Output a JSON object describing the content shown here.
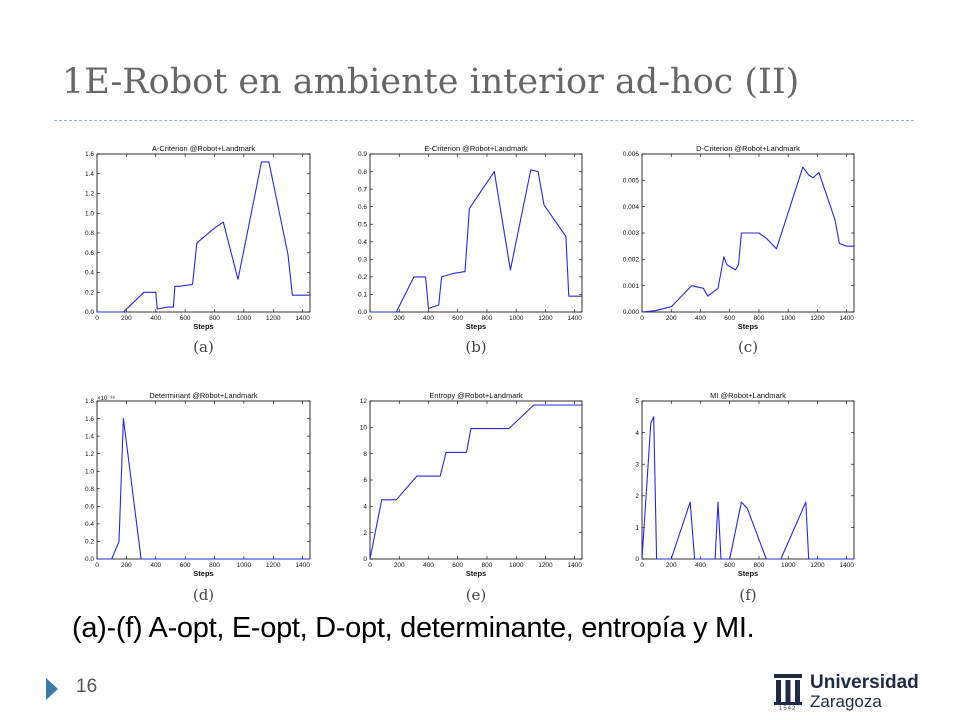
{
  "slide": {
    "title": "1E-Robot en ambiente interior ad-hoc (II)",
    "caption": "(a)-(f) A-opt, E-opt, D-opt, determinante, entropía y MI.",
    "page_number": "16",
    "logo": {
      "line1": "Universidad",
      "line2": "Zaragoza",
      "year": "1542"
    }
  },
  "colors": {
    "line": "#2a2ad6",
    "axes": "#000000",
    "title_rule": "#9fb8c8",
    "bullet": "#3a7ca5"
  },
  "chart_data": [
    {
      "type": "line",
      "panel_label": "(a)",
      "title": "A-Criterion @Robot+Landmark",
      "xlabel": "Steps",
      "ylabel": "",
      "xlim": [
        0,
        1450
      ],
      "ylim": [
        0,
        1.6
      ],
      "xticks": [
        "0",
        "200",
        "400",
        "600",
        "800",
        "1000",
        "1200",
        "1400"
      ],
      "xtick_values": [
        0,
        200,
        400,
        600,
        800,
        1000,
        1200,
        1400
      ],
      "yticks": [
        "0.0",
        "0.2",
        "0.4",
        "0.6",
        "0.8",
        "1.0",
        "1.2",
        "1.4",
        "1.6"
      ],
      "ytick_values": [
        0,
        0.2,
        0.4,
        0.6,
        0.8,
        1.0,
        1.2,
        1.4,
        1.6
      ],
      "y_multiplier": "",
      "series": [
        {
          "x": [
            0,
            180,
            320,
            400,
            410,
            480,
            520,
            530,
            560,
            650,
            680,
            720,
            800,
            860,
            960,
            1120,
            1170,
            1300,
            1330,
            1450
          ],
          "y": [
            0,
            0,
            0.2,
            0.2,
            0.03,
            0.05,
            0.05,
            0.26,
            0.26,
            0.28,
            0.7,
            0.75,
            0.85,
            0.91,
            0.33,
            1.52,
            1.52,
            0.58,
            0.17,
            0.17
          ]
        }
      ]
    },
    {
      "type": "line",
      "panel_label": "(b)",
      "title": "E-Criterion @Robot+Landmark",
      "xlabel": "Steps",
      "ylabel": "",
      "xlim": [
        0,
        1450
      ],
      "ylim": [
        0,
        0.9
      ],
      "xticks": [
        "0",
        "200",
        "400",
        "600",
        "800",
        "1000",
        "1200",
        "1400"
      ],
      "xtick_values": [
        0,
        200,
        400,
        600,
        800,
        1000,
        1200,
        1400
      ],
      "yticks": [
        "0.0",
        "0.1",
        "0.2",
        "0.3",
        "0.4",
        "0.5",
        "0.6",
        "0.7",
        "0.8",
        "0.9"
      ],
      "ytick_values": [
        0,
        0.1,
        0.2,
        0.3,
        0.4,
        0.5,
        0.6,
        0.7,
        0.8,
        0.9
      ],
      "y_multiplier": "",
      "series": [
        {
          "x": [
            0,
            180,
            300,
            380,
            400,
            470,
            490,
            530,
            570,
            650,
            680,
            850,
            960,
            1100,
            1150,
            1190,
            1340,
            1360,
            1450
          ],
          "y": [
            0,
            0,
            0.2,
            0.2,
            0.02,
            0.04,
            0.2,
            0.21,
            0.22,
            0.23,
            0.59,
            0.8,
            0.24,
            0.81,
            0.8,
            0.61,
            0.43,
            0.09,
            0.09
          ]
        }
      ]
    },
    {
      "type": "line",
      "panel_label": "(c)",
      "title": "D-Criterion @Robot+Landmark",
      "xlabel": "Steps",
      "ylabel": "",
      "xlim": [
        0,
        1450
      ],
      "ylim": [
        0,
        0.006
      ],
      "xticks": [
        "0",
        "200",
        "400",
        "600",
        "800",
        "1000",
        "1200",
        "1400"
      ],
      "xtick_values": [
        0,
        200,
        400,
        600,
        800,
        1000,
        1200,
        1400
      ],
      "yticks": [
        "0.000",
        "0.001",
        "0.002",
        "0.003",
        "0.004",
        "0.005",
        "0.006"
      ],
      "ytick_values": [
        0,
        0.001,
        0.002,
        0.003,
        0.004,
        0.005,
        0.006
      ],
      "y_multiplier": "",
      "series": [
        {
          "x": [
            0,
            90,
            200,
            340,
            420,
            450,
            520,
            560,
            580,
            640,
            660,
            680,
            800,
            850,
            920,
            1100,
            1140,
            1170,
            1210,
            1320,
            1350,
            1400,
            1450
          ],
          "y": [
            0,
            5e-05,
            0.0002,
            0.001,
            0.0009,
            0.0006,
            0.0009,
            0.0021,
            0.0018,
            0.0016,
            0.0018,
            0.003,
            0.003,
            0.0028,
            0.0024,
            0.0055,
            0.0052,
            0.0051,
            0.0053,
            0.0035,
            0.0026,
            0.0025,
            0.0025
          ]
        }
      ]
    },
    {
      "type": "line",
      "panel_label": "(d)",
      "title": "Determinant @Robot+Landmark",
      "xlabel": "Steps",
      "ylabel": "",
      "xlim": [
        0,
        1450
      ],
      "ylim": [
        0,
        1.8
      ],
      "xticks": [
        "0",
        "200",
        "400",
        "600",
        "800",
        "1000",
        "1200",
        "1400"
      ],
      "xtick_values": [
        0,
        200,
        400,
        600,
        800,
        1000,
        1200,
        1400
      ],
      "yticks": [
        "0.0",
        "0.2",
        "0.4",
        "0.6",
        "0.8",
        "1.0",
        "1.2",
        "1.4",
        "1.6",
        "1.8"
      ],
      "ytick_values": [
        0,
        0.2,
        0.4,
        0.6,
        0.8,
        1.0,
        1.2,
        1.4,
        1.6,
        1.8
      ],
      "y_multiplier": "×10⁻¹⁸",
      "series": [
        {
          "x": [
            0,
            100,
            150,
            180,
            300,
            1450
          ],
          "y": [
            0,
            0,
            0.2,
            1.6,
            0,
            0
          ]
        }
      ]
    },
    {
      "type": "line",
      "panel_label": "(e)",
      "title": "Entropy @Robot+Landmark",
      "xlabel": "Steps",
      "ylabel": "",
      "xlim": [
        0,
        1450
      ],
      "ylim": [
        0,
        12
      ],
      "xticks": [
        "0",
        "200",
        "400",
        "600",
        "800",
        "1000",
        "1200",
        "1400"
      ],
      "xtick_values": [
        0,
        200,
        400,
        600,
        800,
        1000,
        1200,
        1400
      ],
      "yticks": [
        "0",
        "2",
        "4",
        "6",
        "8",
        "10",
        "12"
      ],
      "ytick_values": [
        0,
        2,
        4,
        6,
        8,
        10,
        12
      ],
      "y_multiplier": "",
      "series": [
        {
          "x": [
            0,
            80,
            180,
            320,
            480,
            520,
            660,
            690,
            950,
            1120,
            1450
          ],
          "y": [
            0,
            4.5,
            4.5,
            6.3,
            6.3,
            8.1,
            8.1,
            9.9,
            9.9,
            11.7,
            11.7
          ]
        }
      ]
    },
    {
      "type": "line",
      "panel_label": "(f)",
      "title": "MI @Robot+Landmark",
      "xlabel": "Steps",
      "ylabel": "",
      "xlim": [
        0,
        1450
      ],
      "ylim": [
        0,
        5
      ],
      "xticks": [
        "0",
        "200",
        "400",
        "600",
        "800",
        "1000",
        "1200",
        "1400"
      ],
      "xtick_values": [
        0,
        200,
        400,
        600,
        800,
        1000,
        1200,
        1400
      ],
      "yticks": [
        "0",
        "1",
        "2",
        "3",
        "4",
        "5"
      ],
      "ytick_values": [
        0,
        1,
        2,
        3,
        4,
        5
      ],
      "y_multiplier": "",
      "series": [
        {
          "x": [
            0,
            60,
            80,
            100,
            200,
            330,
            360,
            500,
            520,
            540,
            600,
            680,
            720,
            850,
            950,
            1120,
            1140,
            1450
          ],
          "y": [
            0,
            4.3,
            4.5,
            0,
            0,
            1.8,
            0,
            0,
            1.8,
            0,
            0,
            1.8,
            1.6,
            0,
            0,
            1.8,
            0,
            0
          ]
        }
      ]
    }
  ]
}
